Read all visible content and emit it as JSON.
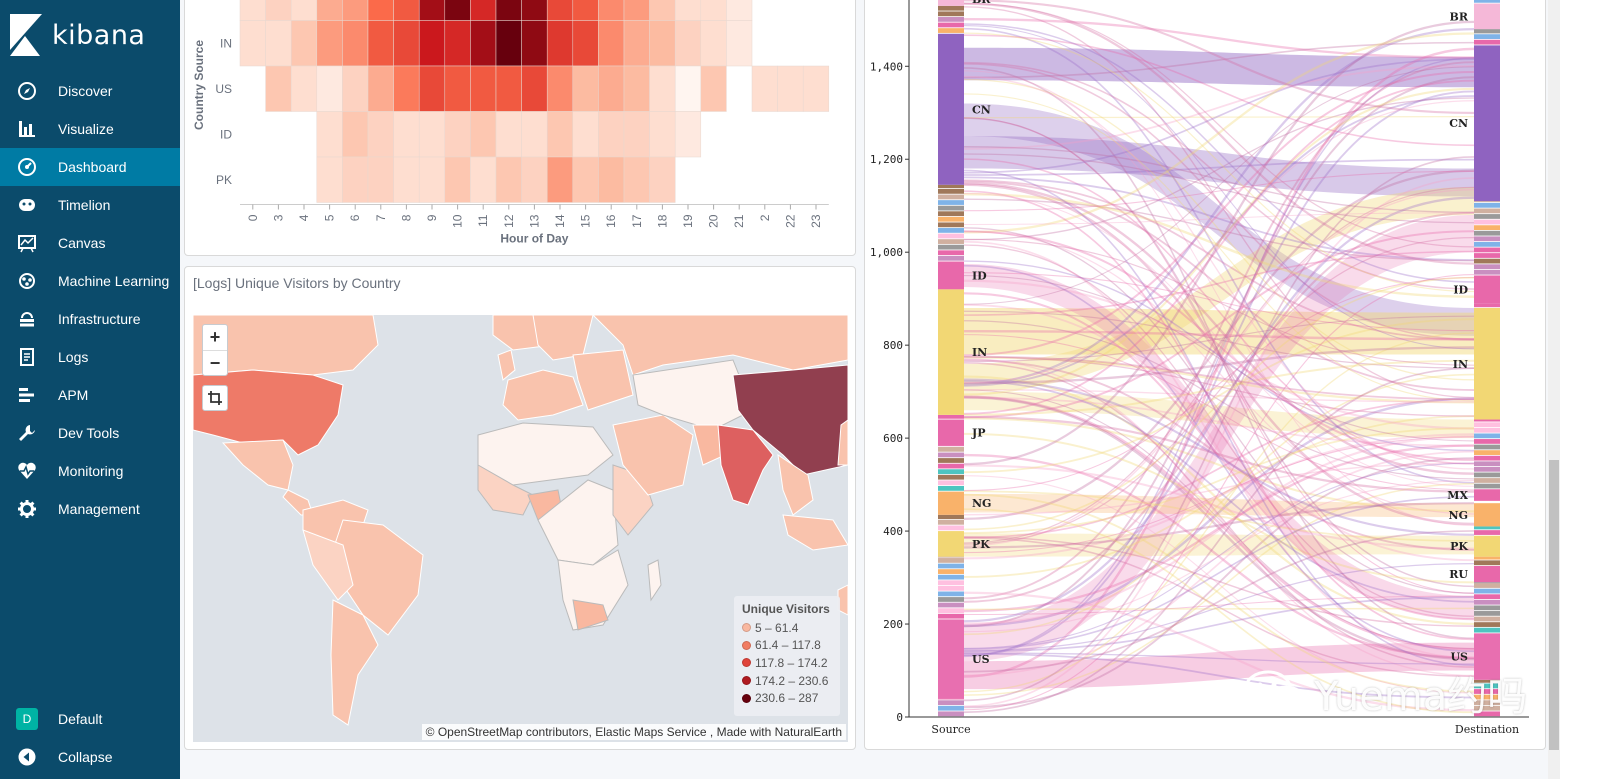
{
  "app": {
    "brand": "kibana"
  },
  "sidebar": {
    "items": [
      {
        "label": "Discover",
        "icon": "compass-icon"
      },
      {
        "label": "Visualize",
        "icon": "bar-chart-icon"
      },
      {
        "label": "Dashboard",
        "icon": "dashboard-icon",
        "active": true
      },
      {
        "label": "Timelion",
        "icon": "timelion-icon"
      },
      {
        "label": "Canvas",
        "icon": "canvas-icon"
      },
      {
        "label": "Machine Learning",
        "icon": "ml-icon"
      },
      {
        "label": "Infrastructure",
        "icon": "infrastructure-icon"
      },
      {
        "label": "Logs",
        "icon": "logs-icon"
      },
      {
        "label": "APM",
        "icon": "apm-icon"
      },
      {
        "label": "Dev Tools",
        "icon": "wrench-icon"
      },
      {
        "label": "Monitoring",
        "icon": "heartbeat-icon"
      },
      {
        "label": "Management",
        "icon": "gear-icon"
      }
    ],
    "space": {
      "initial": "D",
      "label": "Default"
    },
    "collapse_label": "Collapse"
  },
  "heatmap_panel": {
    "chart_data": {
      "type": "heatmap",
      "title": "",
      "xlabel": "Hour of Day",
      "ylabel": "Country Source",
      "x_categories": [
        "0",
        "3",
        "4",
        "5",
        "6",
        "7",
        "8",
        "9",
        "10",
        "11",
        "12",
        "13",
        "14",
        "15",
        "16",
        "17",
        "18",
        "19",
        "20",
        "21",
        "2",
        "22",
        "23"
      ],
      "y_categories": [
        "IN",
        "US",
        "ID",
        "PK"
      ],
      "values": [
        [
          0.1,
          0.1,
          0.2,
          0.35,
          0.4,
          0.55,
          0.6,
          0.75,
          0.7,
          0.85,
          1.0,
          0.9,
          0.65,
          0.6,
          0.4,
          0.3,
          0.25,
          0.15,
          0.1,
          0.05,
          null,
          null,
          null
        ],
        [
          null,
          0.2,
          0.1,
          0.05,
          0.15,
          0.3,
          0.45,
          0.6,
          0.55,
          0.55,
          0.55,
          0.6,
          0.4,
          0.25,
          0.3,
          0.25,
          0.1,
          0.0,
          0.2,
          null,
          0.1,
          0.1,
          0.1
        ],
        [
          null,
          null,
          null,
          0.1,
          0.2,
          0.15,
          0.1,
          0.1,
          0.15,
          0.2,
          0.1,
          0.1,
          0.2,
          0.1,
          0.15,
          0.15,
          0.1,
          0.05,
          null,
          null,
          null,
          null,
          null
        ],
        [
          null,
          null,
          null,
          0.1,
          0.15,
          0.15,
          0.1,
          0.1,
          0.2,
          0.1,
          0.2,
          0.15,
          0.35,
          0.2,
          0.25,
          0.2,
          0.15,
          null,
          null,
          null,
          null,
          null,
          null
        ]
      ]
    }
  },
  "map_panel": {
    "title": "[Logs] Unique Visitors by Country",
    "zoom_in": "+",
    "zoom_out": "−",
    "attribution": "© OpenStreetMap contributors, Elastic Maps Service , Made with NaturalEarth",
    "legend": {
      "title": "Unique Visitors",
      "ranges": [
        {
          "label": "5 – 61.4",
          "color": "#f9b8a0"
        },
        {
          "label": "61.4 – 117.8",
          "color": "#f17c62"
        },
        {
          "label": "117.8 – 174.2",
          "color": "#e0433a"
        },
        {
          "label": "174.2 – 230.6",
          "color": "#b01a20"
        },
        {
          "label": "230.6 – 287",
          "color": "#67000d"
        }
      ]
    }
  },
  "sankey_panel": {
    "chart_data": {
      "type": "sankey",
      "yaxis_ticks": [
        "0",
        "200",
        "400",
        "600",
        "800",
        "1,000",
        "1,200",
        "1,400"
      ],
      "ylim": [
        0,
        1560
      ],
      "source_label": "Source",
      "destination_label": "Destination",
      "source_nodes": [
        {
          "name": "BR",
          "from": 1530,
          "to": 1560
        },
        {
          "name": "CN",
          "from": 1145,
          "to": 1470
        },
        {
          "name": "ID",
          "from": 920,
          "to": 980
        },
        {
          "name": "IN",
          "from": 650,
          "to": 920
        },
        {
          "name": "JP",
          "from": 585,
          "to": 640
        },
        {
          "name": "NG",
          "from": 435,
          "to": 485
        },
        {
          "name": "PK",
          "from": 345,
          "to": 400
        },
        {
          "name": "US",
          "from": 40,
          "to": 210
        }
      ],
      "destination_nodes": [
        {
          "name": "BR",
          "from": 1480,
          "to": 1535
        },
        {
          "name": "CN",
          "from": 1110,
          "to": 1445
        },
        {
          "name": "ID",
          "from": 890,
          "to": 950
        },
        {
          "name": "IN",
          "from": 640,
          "to": 880
        },
        {
          "name": "MX",
          "from": 465,
          "to": 490
        },
        {
          "name": "NG",
          "from": 410,
          "to": 460
        },
        {
          "name": "PK",
          "from": 345,
          "to": 390
        },
        {
          "name": "RU",
          "from": 290,
          "to": 325
        },
        {
          "name": "US",
          "from": 80,
          "to": 180
        }
      ]
    }
  },
  "watermark": {
    "text": "Yuema约吗"
  }
}
